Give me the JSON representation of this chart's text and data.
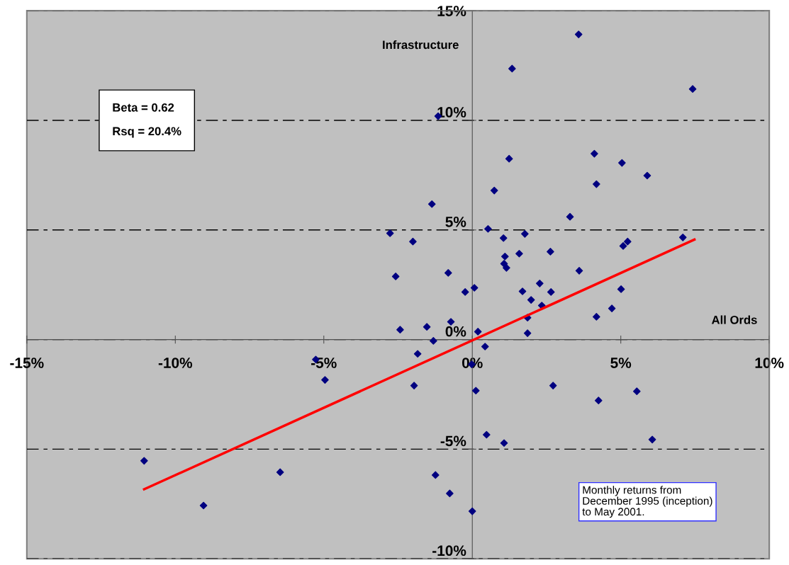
{
  "chart_data": {
    "type": "scatter",
    "xlabel": "All Ords",
    "ylabel": "Infrastructure",
    "annotations": [
      "Beta = 0.62\n\nRsq = 20.4%",
      "Monthly returns from\nDecember 1995 (inception)\nto May 2001."
    ],
    "xlim": [
      -15,
      10
    ],
    "ylim": [
      -10,
      15
    ],
    "xticks": [
      {
        "value": -15,
        "label": "-15%"
      },
      {
        "value": -10,
        "label": "-10%"
      },
      {
        "value": -5,
        "label": "-5%"
      },
      {
        "value": 0,
        "label": "0%"
      },
      {
        "value": 5,
        "label": "5%"
      },
      {
        "value": 10,
        "label": "10%"
      }
    ],
    "yticks": [
      {
        "value": -10,
        "label": "-10%"
      },
      {
        "value": -5,
        "label": "-5%"
      },
      {
        "value": 0,
        "label": "0%"
      },
      {
        "value": 5,
        "label": "5%"
      },
      {
        "value": 10,
        "label": "10%"
      },
      {
        "value": 15,
        "label": "15%"
      }
    ],
    "grid": "y",
    "marker": "diamond",
    "series": [
      {
        "color": "#000080",
        "x": [
          3.58,
          1.34,
          7.42,
          -1.15,
          4.11,
          1.24,
          0.74,
          4.18,
          5.89,
          5.04,
          -1.36,
          3.29,
          0.53,
          -2.77,
          1.05,
          1.77,
          -2.0,
          7.09,
          5.23,
          5.08,
          1.58,
          2.63,
          1.1,
          1.07,
          1.15,
          -2.58,
          -0.81,
          3.6,
          0.07,
          -0.24,
          2.27,
          1.69,
          2.65,
          1.98,
          5.01,
          2.34,
          4.7,
          1.86,
          4.18,
          -0.72,
          -1.53,
          -2.43,
          0.19,
          1.86,
          -1.31,
          0.43,
          -1.84,
          -5.27,
          -0.02,
          -4.96,
          -1.96,
          0.12,
          2.72,
          5.54,
          4.25,
          0.48,
          1.07,
          6.06,
          -11.05,
          -6.47,
          -1.24,
          -0.76,
          -9.05,
          0.0
        ],
        "values": [
          13.92,
          12.36,
          11.43,
          10.19,
          8.48,
          8.25,
          6.8,
          7.09,
          7.48,
          8.06,
          6.18,
          5.6,
          5.05,
          4.85,
          4.63,
          4.82,
          4.47,
          4.66,
          4.47,
          4.27,
          3.92,
          4.01,
          3.79,
          3.46,
          3.27,
          2.88,
          3.04,
          3.14,
          2.36,
          2.17,
          2.56,
          2.2,
          2.17,
          1.81,
          2.3,
          1.55,
          1.42,
          1.0,
          1.04,
          0.81,
          0.58,
          0.45,
          0.36,
          0.29,
          -0.06,
          -0.32,
          -0.65,
          -0.91,
          -1.13,
          -1.84,
          -2.1,
          -2.33,
          -2.1,
          -2.36,
          -2.78,
          -4.34,
          -4.72,
          -4.56,
          -5.53,
          -6.05,
          -6.18,
          -7.02,
          -7.57,
          -7.83
        ]
      },
      {
        "type": "line",
        "color": "#ff0000",
        "marker": "none",
        "line_style": "solid",
        "x": [
          -11.05,
          7.48
        ],
        "values": [
          -6.83,
          4.56
        ]
      }
    ]
  }
}
